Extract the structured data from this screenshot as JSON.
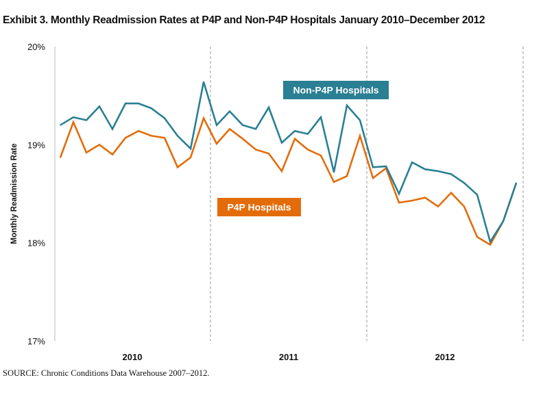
{
  "title": "Exhibit 3. Monthly Readmission Rates at P4P and Non-P4P Hospitals January 2010–December 2012",
  "source": "SOURCE: Chronic Conditions Data Warehouse 2007–2012.",
  "chart_data": {
    "type": "line",
    "title": "Exhibit 3. Monthly Readmission Rates at P4P and Non-P4P Hospitals January 2010–December 2012",
    "ylabel": "Monthly Readmission Rate",
    "xlabel": "",
    "ylim": [
      17,
      20
    ],
    "yticks": [
      "17%",
      "18%",
      "19%",
      "20%"
    ],
    "ytick_values": [
      17,
      18,
      19,
      20
    ],
    "year_labels": [
      "2010",
      "2011",
      "2012"
    ],
    "grid": "dashed vertical lines at year boundaries",
    "x": [
      "2010-01",
      "2010-02",
      "2010-03",
      "2010-04",
      "2010-05",
      "2010-06",
      "2010-07",
      "2010-08",
      "2010-09",
      "2010-10",
      "2010-11",
      "2010-12",
      "2011-01",
      "2011-02",
      "2011-03",
      "2011-04",
      "2011-05",
      "2011-06",
      "2011-07",
      "2011-08",
      "2011-09",
      "2011-10",
      "2011-11",
      "2011-12",
      "2012-01",
      "2012-02",
      "2012-03",
      "2012-04",
      "2012-05",
      "2012-06",
      "2012-07",
      "2012-08",
      "2012-09",
      "2012-10",
      "2012-11",
      "2012-12"
    ],
    "series": [
      {
        "name": "Non-P4P Hospitals",
        "color": "#2a7f93",
        "values": [
          19.2,
          19.28,
          19.25,
          19.39,
          19.16,
          19.42,
          19.42,
          19.37,
          19.27,
          19.09,
          18.96,
          19.64,
          19.2,
          19.34,
          19.2,
          19.16,
          19.38,
          19.02,
          19.14,
          19.11,
          19.28,
          18.72,
          19.4,
          19.25,
          18.77,
          18.78,
          18.5,
          18.82,
          18.75,
          18.73,
          18.7,
          18.61,
          18.49,
          18.01,
          18.22,
          18.61
        ]
      },
      {
        "name": "P4P Hospitals",
        "color": "#e36c0a",
        "values": [
          18.87,
          19.23,
          18.92,
          19.0,
          18.9,
          19.07,
          19.14,
          19.09,
          19.07,
          18.77,
          18.87,
          19.27,
          19.01,
          19.16,
          19.06,
          18.95,
          18.91,
          18.73,
          19.06,
          18.95,
          18.89,
          18.62,
          18.68,
          19.09,
          18.66,
          18.76,
          18.41,
          18.43,
          18.46,
          18.37,
          18.51,
          18.37,
          18.06,
          17.98,
          18.22,
          18.61
        ]
      }
    ],
    "legend": "inline labels"
  }
}
